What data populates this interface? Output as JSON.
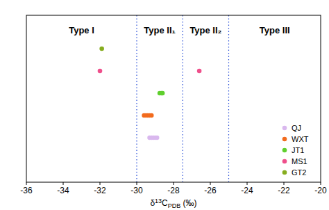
{
  "chart_data": {
    "type": "scatter",
    "x_label": "δ13CPDB (‰)",
    "xlim": [
      -36,
      -20
    ],
    "xticks": [
      -36,
      -34,
      -32,
      -30,
      -28,
      -26,
      -24,
      -22,
      -20
    ],
    "ylim": [
      0,
      7.5
    ],
    "tick_labels": "x",
    "legend": "lower right",
    "regions": [
      {
        "label": "Type I",
        "from": -36,
        "to": -30
      },
      {
        "label": "Type II₁",
        "from": -30,
        "to": -27.5
      },
      {
        "label": "Type II₂",
        "from": -27.5,
        "to": -25
      },
      {
        "label": "Type III",
        "from": -25,
        "to": -20
      }
    ],
    "series": [
      {
        "name": "QJ",
        "color": "#d9b8ee",
        "x": [
          -29.3,
          -29.2,
          -29.1,
          -29.0,
          -28.9
        ],
        "values": [
          2,
          2,
          2,
          2,
          2
        ]
      },
      {
        "name": "WXT",
        "color": "#f26b1d",
        "x": [
          -29.6,
          -29.5,
          -29.4,
          -29.3,
          -29.2
        ],
        "values": [
          3,
          3,
          3,
          3,
          3
        ]
      },
      {
        "name": "JT1",
        "color": "#5fcf2e",
        "x": [
          -28.75,
          -28.65,
          -28.6
        ],
        "values": [
          4,
          4,
          4
        ]
      },
      {
        "name": "MS1",
        "color": "#ef4f8b",
        "x": [
          -32.0,
          -26.6
        ],
        "values": [
          5,
          5
        ]
      },
      {
        "name": "GT2",
        "color": "#86ad1f",
        "x": [
          -31.9
        ],
        "values": [
          6
        ]
      }
    ]
  }
}
